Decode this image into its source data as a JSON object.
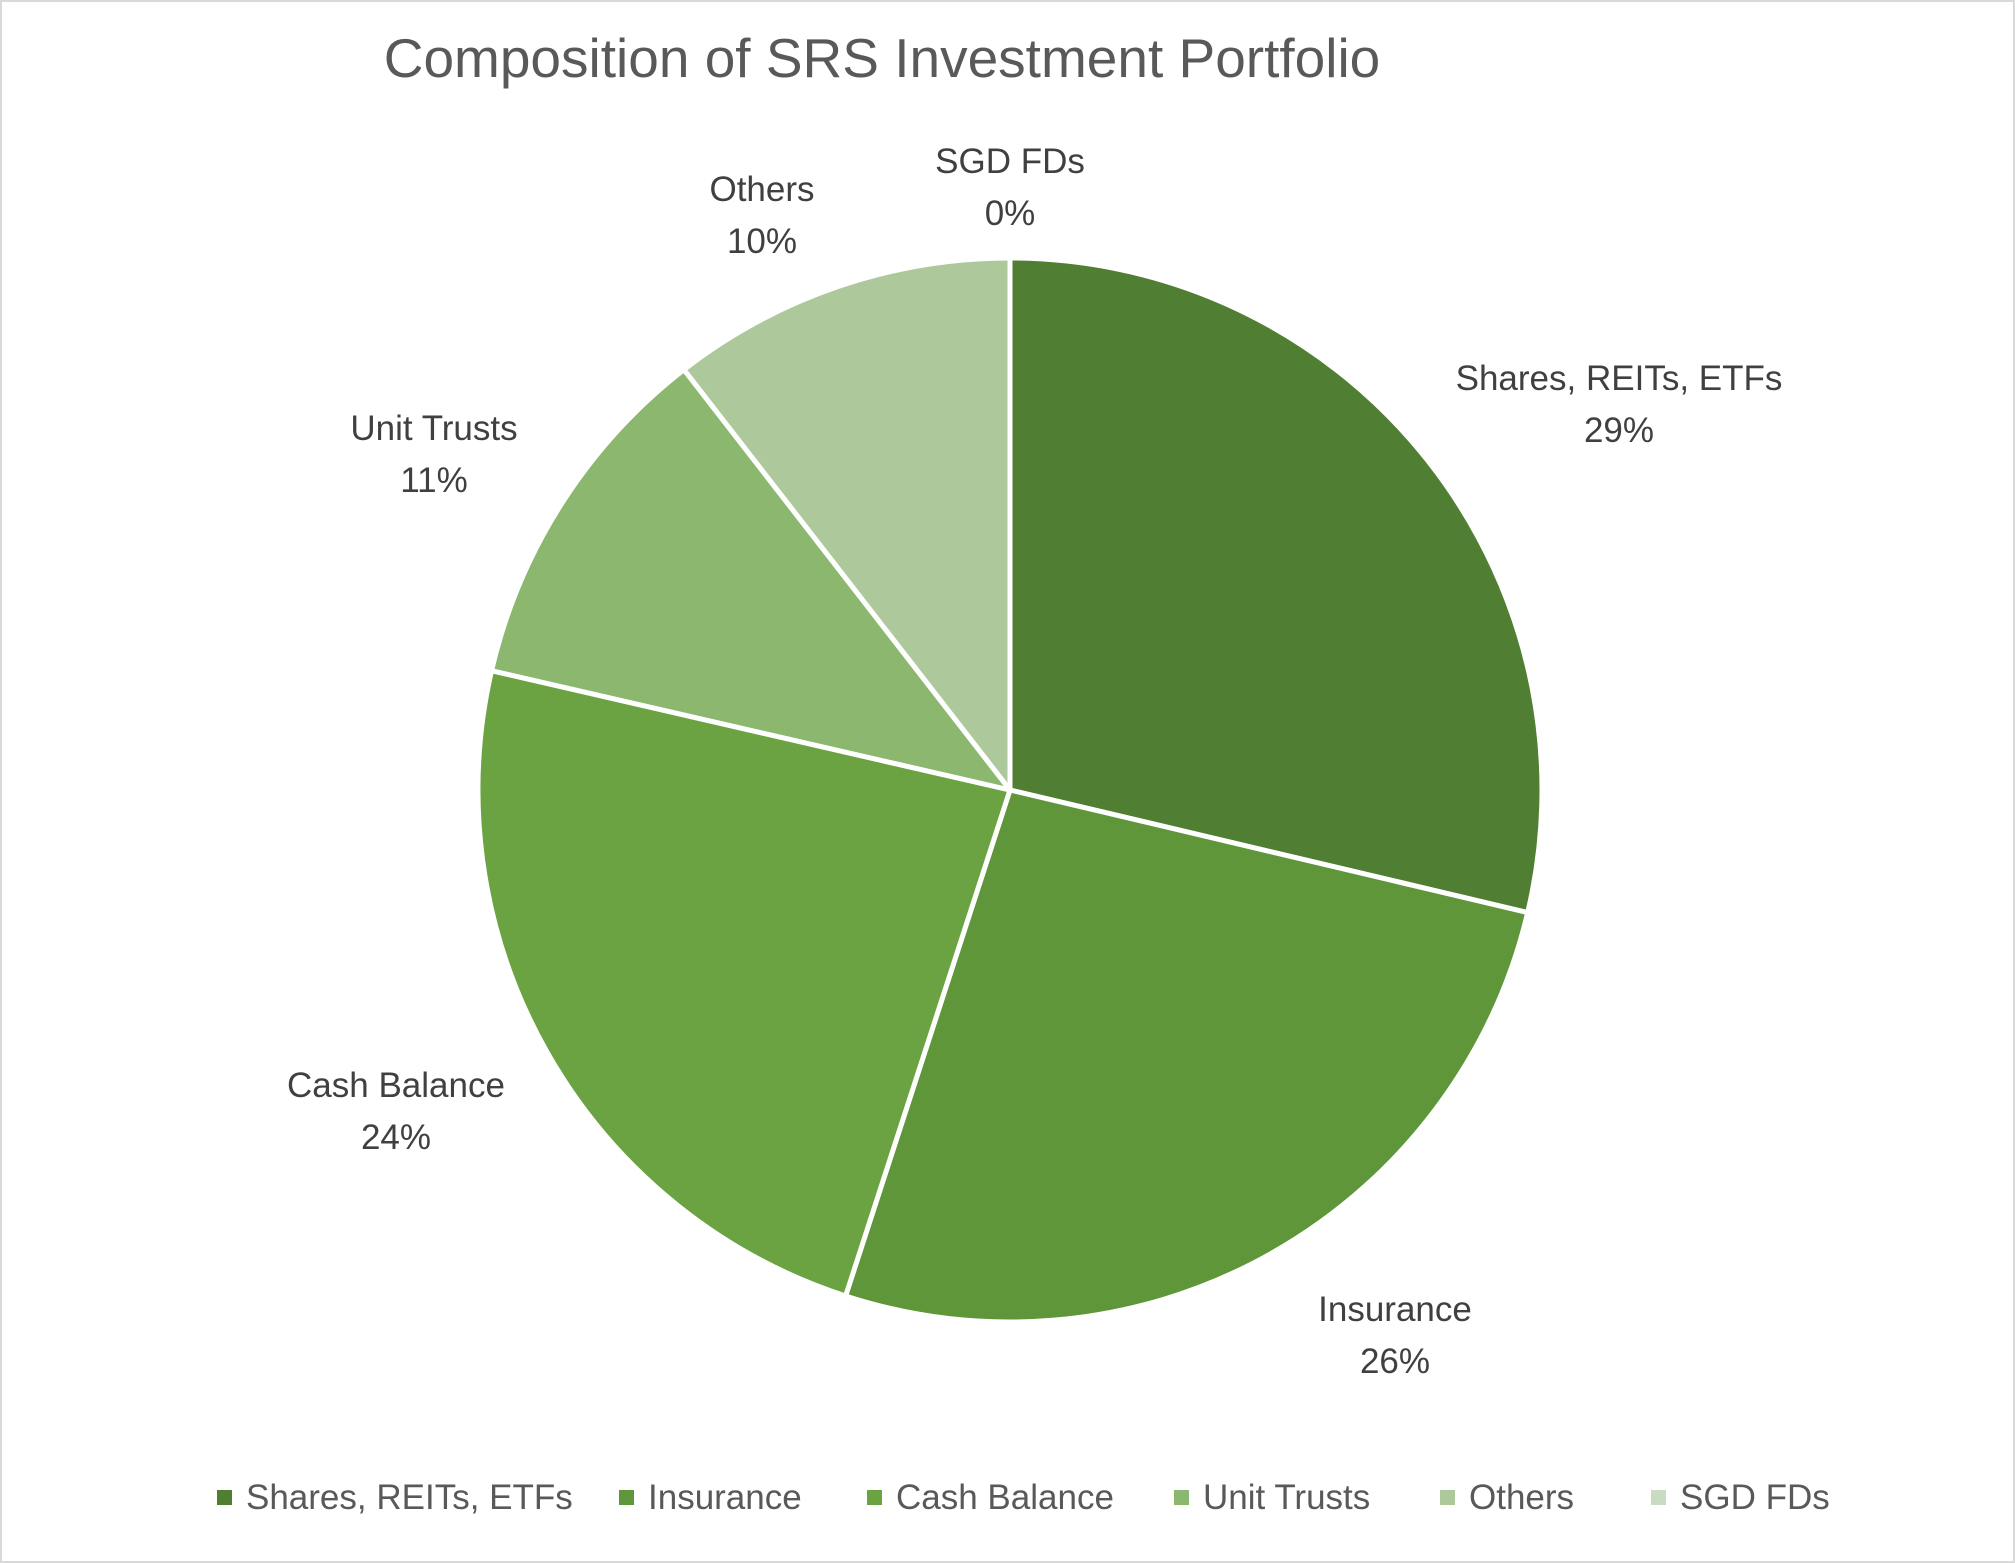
{
  "chart_data": {
    "type": "pie",
    "title": "Composition of SRS Investment Portfolio",
    "legend_position": "bottom",
    "start_angle_deg": 0,
    "direction": "clockwise",
    "slices": [
      {
        "label": "Shares, REITs, ETFs",
        "value": 28.7,
        "display": "29%",
        "color": "#507e32"
      },
      {
        "label": "Insurance",
        "value": 26.3,
        "display": "26%",
        "color": "#5f963a"
      },
      {
        "label": "Cash Balance",
        "value": 23.6,
        "display": "24%",
        "color": "#6ba342"
      },
      {
        "label": "Unit Trusts",
        "value": 10.9,
        "display": "11%",
        "color": "#8bb76e"
      },
      {
        "label": "Others",
        "value": 10.5,
        "display": "10%",
        "color": "#adc99c"
      },
      {
        "label": "SGD FDs",
        "value": 0.0,
        "display": "0%",
        "color": "#c9dcbf"
      }
    ]
  }
}
